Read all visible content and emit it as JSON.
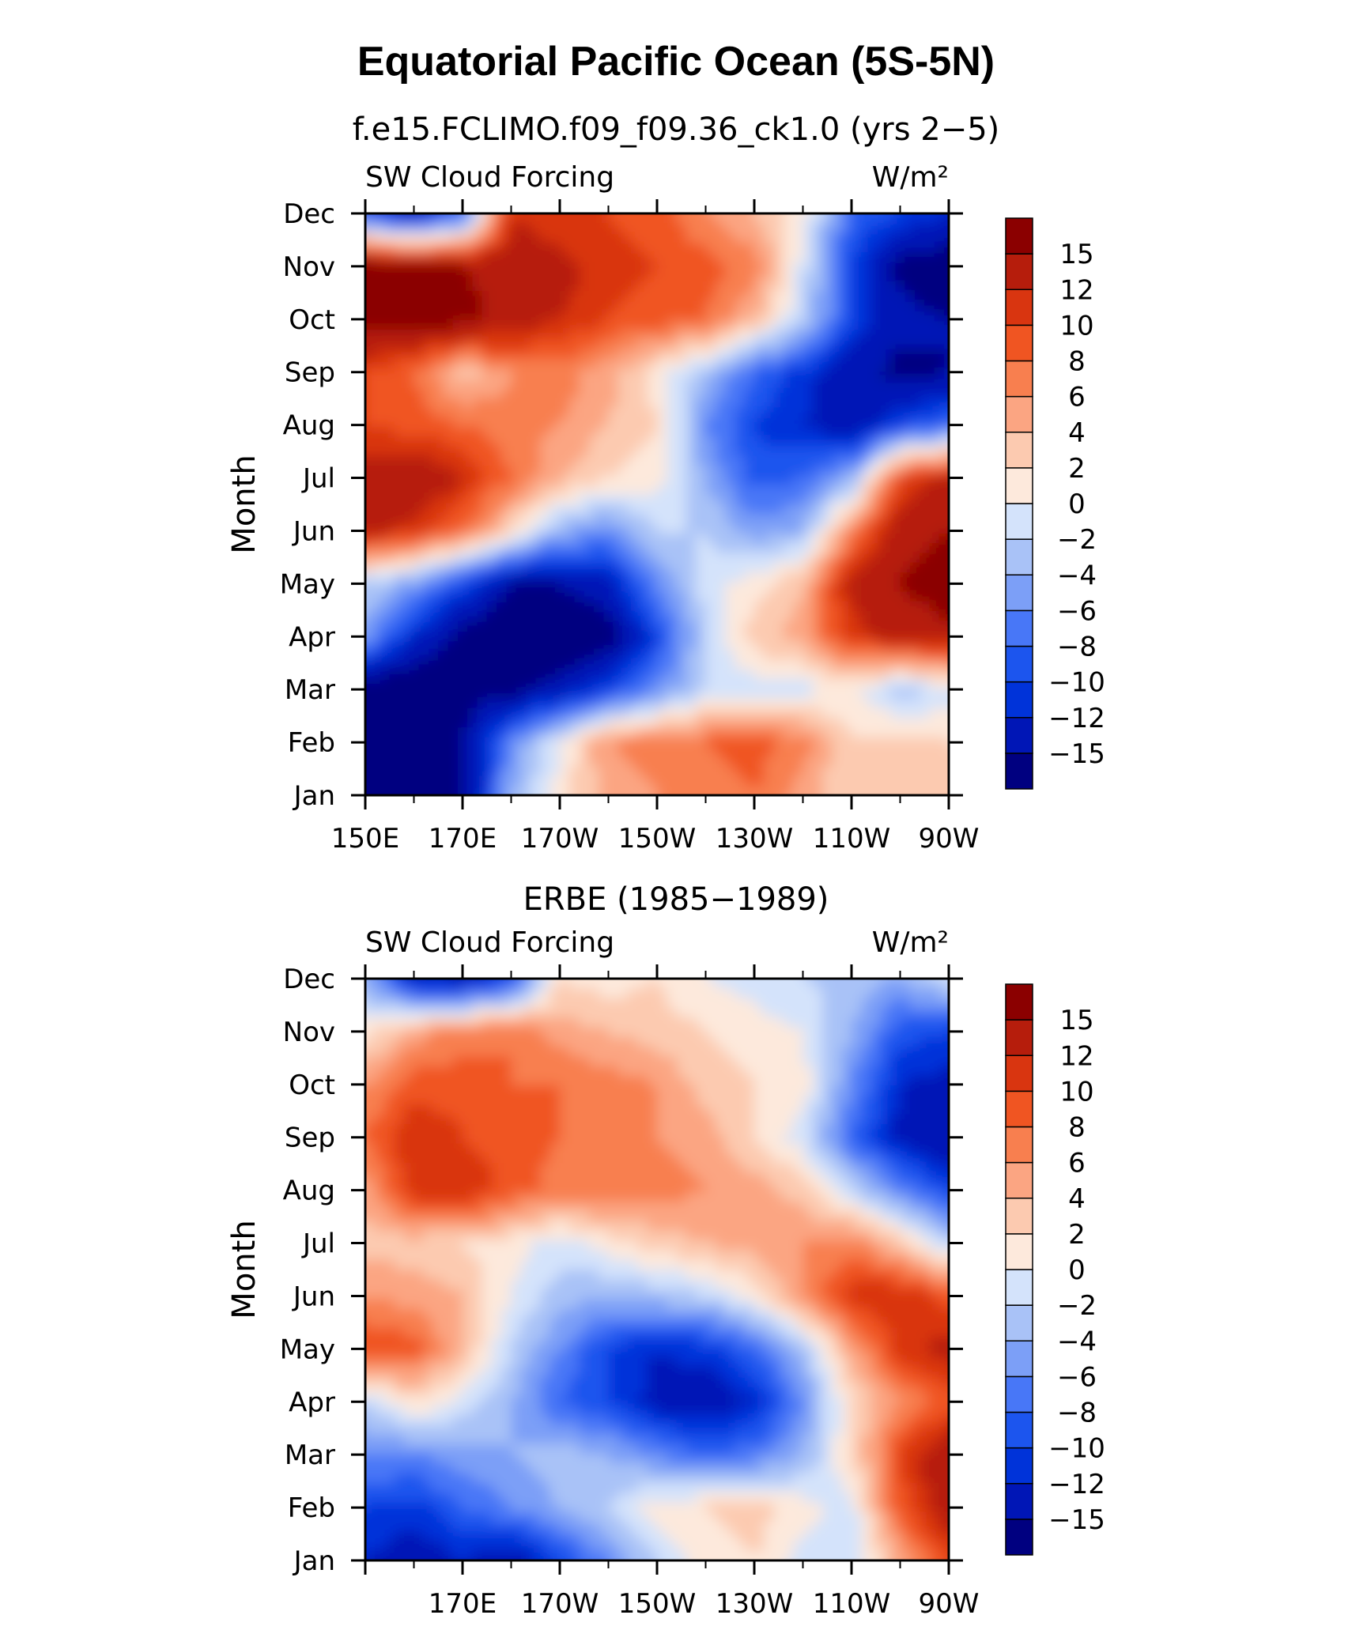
{
  "title": "Equatorial Pacific Ocean (5S-5N)",
  "colors": {
    "palette": [
      "#000080",
      "#0016b6",
      "#0033d9",
      "#1c55ee",
      "#4877f7",
      "#7c9ff7",
      "#a9c2f7",
      "#d4e3fb",
      "#fde9dc",
      "#fccab0",
      "#fba582",
      "#f87f4f",
      "#f05522",
      "#d93510",
      "#b61d0c",
      "#8b0000"
    ]
  },
  "chart_data": [
    {
      "type": "heatmap",
      "subtitle": "f.e15.FCLIMO.f09_f09.36_ck1.0 (yrs 2−5)",
      "variable": "SW Cloud Forcing",
      "units": "W/m²",
      "ylabel": "Month",
      "y_ticks": [
        "Jan",
        "Feb",
        "Mar",
        "Apr",
        "May",
        "Jun",
        "Jul",
        "Aug",
        "Sep",
        "Oct",
        "Nov",
        "Dec"
      ],
      "x_ticks": [
        "150E",
        "170E",
        "170W",
        "150W",
        "130W",
        "110W",
        "90W"
      ],
      "colorbar_levels": [
        "−15",
        "−12",
        "−10",
        "−8",
        "−6",
        "−4",
        "−2",
        "0",
        "2",
        "4",
        "6",
        "8",
        "10",
        "12",
        "15"
      ],
      "x_longitudes": [
        150,
        160,
        170,
        180,
        190,
        200,
        210,
        220,
        230,
        240,
        250,
        260,
        270
      ],
      "z": [
        [
          -18,
          -18,
          -16,
          -4,
          1,
          5,
          6,
          7,
          8,
          5,
          2,
          4,
          3
        ],
        [
          -18,
          -18,
          -15,
          -6,
          0,
          6,
          7,
          8,
          9,
          7,
          2,
          3,
          2
        ],
        [
          -18,
          -18,
          -17,
          -16,
          -14,
          -10,
          -6,
          -2,
          -1,
          -1,
          1,
          -3,
          -1
        ],
        [
          -5,
          -12,
          -16,
          -18,
          -18,
          -17,
          -10,
          -2,
          3,
          5,
          11,
          13,
          14
        ],
        [
          -2,
          -5,
          -10,
          -15,
          -15,
          -13,
          -6,
          -1,
          1,
          4,
          13,
          15,
          17
        ],
        [
          13,
          11,
          8,
          2,
          -4,
          -6,
          -2,
          -2,
          -5,
          -4,
          7,
          14,
          15
        ],
        [
          14,
          15,
          12,
          8,
          4,
          2,
          1,
          -4,
          -9,
          -8,
          -4,
          10,
          13
        ],
        [
          10,
          9,
          8,
          7,
          6,
          4,
          2,
          -6,
          -10,
          -12,
          -14,
          -10,
          -8
        ],
        [
          10,
          8,
          3,
          6,
          7,
          5,
          1,
          -3,
          -8,
          -11,
          -14,
          -16,
          -15
        ],
        [
          17,
          17,
          16,
          14,
          12,
          10,
          9,
          8,
          4,
          -2,
          -10,
          -14,
          -15
        ],
        [
          17,
          16,
          15,
          14,
          13,
          11,
          10,
          9,
          7,
          -1,
          -10,
          -16,
          -17
        ],
        [
          -10,
          -14,
          -8,
          12,
          10,
          10,
          9,
          6,
          4,
          1,
          -8,
          -10,
          -12
        ]
      ]
    },
    {
      "type": "heatmap",
      "subtitle": "ERBE (1985−1989)",
      "variable": "SW Cloud Forcing",
      "units": "W/m²",
      "ylabel": "Month",
      "y_ticks": [
        "Jan",
        "Feb",
        "Mar",
        "Apr",
        "May",
        "Jun",
        "Jul",
        "Aug",
        "Sep",
        "Oct",
        "Nov",
        "Dec"
      ],
      "x_ticks": [
        "170E",
        "170W",
        "150W",
        "130W",
        "110W",
        "90W"
      ],
      "colorbar_levels": [
        "−15",
        "−12",
        "−10",
        "−8",
        "−6",
        "−4",
        "−2",
        "0",
        "2",
        "4",
        "6",
        "8",
        "10",
        "12",
        "15"
      ],
      "x_longitudes": [
        150,
        160,
        170,
        180,
        190,
        200,
        210,
        220,
        230,
        240,
        250,
        260,
        270
      ],
      "z": [
        [
          -12,
          -14,
          -12,
          -14,
          -10,
          -6,
          -2,
          1,
          2,
          -1,
          -2,
          5,
          10
        ],
        [
          -10,
          -11,
          -8,
          -6,
          -4,
          -2,
          1,
          2,
          3,
          1,
          -1,
          9,
          14
        ],
        [
          -6,
          -6,
          -5,
          -4,
          -3,
          -4,
          -6,
          -8,
          -7,
          -4,
          2,
          10,
          15
        ],
        [
          -2,
          2,
          -1,
          -4,
          -8,
          -10,
          -13,
          -14,
          -12,
          -6,
          2,
          6,
          9
        ],
        [
          10,
          9,
          4,
          -2,
          -6,
          -10,
          -12,
          -11,
          -8,
          -3,
          5,
          11,
          13
        ],
        [
          6,
          5,
          4,
          0,
          -3,
          -4,
          -3,
          -2,
          1,
          6,
          11,
          12,
          9
        ],
        [
          3,
          3,
          2,
          1,
          -1,
          1,
          3,
          4,
          5,
          6,
          7,
          3,
          -2
        ],
        [
          5,
          11,
          12,
          9,
          7,
          8,
          7,
          6,
          5,
          3,
          -2,
          -6,
          -10
        ],
        [
          8,
          12,
          10,
          9,
          8,
          7,
          6,
          5,
          2,
          -1,
          -8,
          -13,
          -15
        ],
        [
          6,
          9,
          9,
          8,
          8,
          7,
          6,
          3,
          2,
          1,
          -6,
          -12,
          -13
        ],
        [
          1,
          5,
          7,
          8,
          5,
          4,
          3,
          2,
          1,
          0,
          -4,
          -9,
          -10
        ],
        [
          -4,
          -13,
          -14,
          -10,
          2,
          1,
          2,
          0,
          -1,
          -2,
          -3,
          -4,
          -1
        ]
      ]
    }
  ]
}
